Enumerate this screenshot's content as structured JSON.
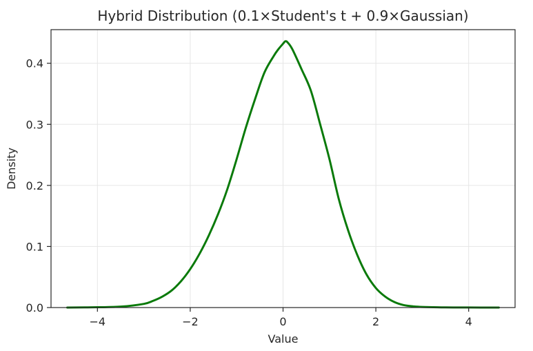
{
  "chart_data": {
    "type": "line",
    "title": "Hybrid Distribution (0.1×Student's t + 0.9×Gaussian)",
    "xlabel": "Value",
    "ylabel": "Density",
    "xlim": [
      -5.0,
      5.0
    ],
    "ylim": [
      0.0,
      0.455
    ],
    "grid": true,
    "line_color": "#0a7a0a",
    "x_ticks": [
      -4,
      -2,
      0,
      2,
      4
    ],
    "x_tick_labels": [
      "−4",
      "−2",
      "0",
      "2",
      "4"
    ],
    "y_ticks": [
      0.0,
      0.1,
      0.2,
      0.3,
      0.4
    ],
    "y_tick_labels": [
      "0.0",
      "0.1",
      "0.2",
      "0.3",
      "0.4"
    ],
    "series": [
      {
        "x": [
          -4.65,
          -4.0,
          -3.5,
          -3.0,
          -2.8,
          -2.6,
          -2.4,
          -2.2,
          -2.0,
          -1.8,
          -1.6,
          -1.4,
          -1.2,
          -1.0,
          -0.8,
          -0.6,
          -0.4,
          -0.2,
          -0.1,
          0.0,
          0.05,
          0.1,
          0.2,
          0.4,
          0.6,
          0.8,
          1.0,
          1.2,
          1.4,
          1.6,
          1.8,
          2.0,
          2.2,
          2.4,
          2.6,
          2.8,
          3.0,
          3.5,
          4.0,
          4.65
        ],
        "y": [
          0.0,
          0.0005,
          0.0015,
          0.006,
          0.011,
          0.018,
          0.028,
          0.043,
          0.063,
          0.088,
          0.118,
          0.153,
          0.194,
          0.243,
          0.295,
          0.342,
          0.385,
          0.412,
          0.423,
          0.432,
          0.436,
          0.434,
          0.423,
          0.39,
          0.355,
          0.3,
          0.243,
          0.178,
          0.127,
          0.086,
          0.054,
          0.032,
          0.018,
          0.009,
          0.004,
          0.002,
          0.001,
          0.0003,
          0.0001,
          0.0
        ]
      }
    ]
  }
}
